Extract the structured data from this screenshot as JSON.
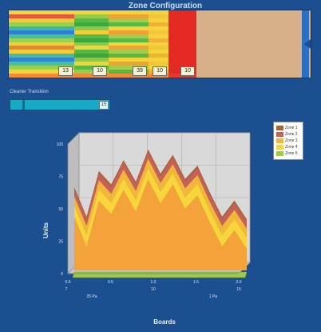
{
  "header": {
    "title": "Zone Configuration"
  },
  "zones": [
    {
      "count": "13"
    },
    {
      "count": "10"
    },
    {
      "count": "39"
    },
    {
      "count": "10"
    },
    {
      "count": "10"
    }
  ],
  "cleaner": {
    "label": "Cleaner Transition",
    "value": "15",
    "level_percent": 12
  },
  "chart_data": {
    "type": "area",
    "xlabel": "Boards",
    "ylabel": "Units",
    "ylim": [
      0,
      100
    ],
    "y_ticks": [
      "0",
      "25",
      "50",
      "75",
      "100"
    ],
    "x_ticks": [
      "0.0",
      "0.5",
      "1.0",
      "1.5",
      "2.0"
    ],
    "x_secondary_ticks": [
      "7",
      "10",
      "15"
    ],
    "x_tertiary_ticks": [
      "25 Pa",
      "1 Pa"
    ],
    "x": [
      0,
      1,
      2,
      3,
      4,
      5,
      6,
      7,
      8,
      9,
      10,
      11,
      12,
      13,
      14
    ],
    "series": [
      {
        "name": "Zone 1",
        "color": "#a8653a",
        "values": [
          2,
          2,
          2,
          2,
          2,
          2,
          2,
          2,
          2,
          2,
          2,
          2,
          2,
          2,
          2
        ]
      },
      {
        "name": "Zone 2",
        "color": "#c7605a",
        "values": [
          5,
          5,
          5,
          5,
          5,
          5,
          5,
          5,
          5,
          5,
          5,
          5,
          5,
          5,
          5
        ]
      },
      {
        "name": "Zone 3",
        "color": "#f1b73a",
        "values": [
          7,
          7,
          7,
          7,
          7,
          7,
          7,
          7,
          7,
          7,
          7,
          7,
          7,
          7,
          7
        ]
      },
      {
        "name": "Zone 4",
        "color": "#f7d63c",
        "values": [
          8,
          8,
          8,
          8,
          8,
          8,
          8,
          8,
          8,
          8,
          8,
          8,
          8,
          8,
          8
        ]
      },
      {
        "name": "Zone 5",
        "color": "#9ec84e",
        "values": [
          5,
          5,
          5,
          5,
          5,
          5,
          5,
          5,
          5,
          5,
          5,
          5,
          5,
          5,
          5
        ]
      }
    ],
    "base_series": {
      "color": "#f3a33a",
      "values": [
        40,
        18,
        52,
        42,
        60,
        44,
        68,
        50,
        64,
        46,
        56,
        36,
        18,
        30,
        16
      ]
    },
    "legend_position": "top-right",
    "grid": true
  },
  "icons": {
    "zone_arrow": "chevron-left-icon"
  }
}
